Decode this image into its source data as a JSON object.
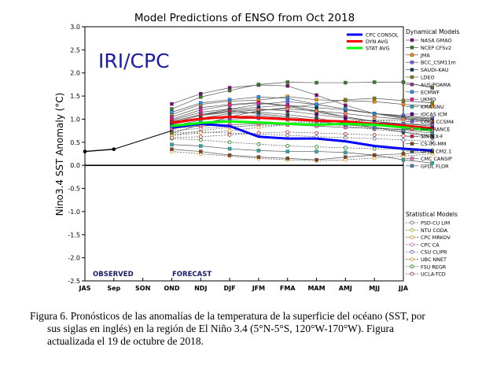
{
  "chart_data": {
    "type": "line",
    "title": "Model Predictions of ENSO from Oct 2018",
    "ylabel": "Nino3.4 SST Anomaly (°C)",
    "watermark": "IRI/CPC",
    "categories": [
      "JAS",
      "Sep",
      "SON",
      "OND",
      "NDJ",
      "DJF",
      "JFM",
      "FMA",
      "MAM",
      "AMJ",
      "MJJ",
      "JJA"
    ],
    "ylim": [
      -2.5,
      3.0
    ],
    "yticks": [
      "-2.5",
      "-2.0",
      "-1.5",
      "-1.0",
      "-0.5",
      "0.0",
      "0.5",
      "1.0",
      "1.5",
      "2.0",
      "2.5",
      "3.0"
    ],
    "zero_line": true,
    "annotations": {
      "observed": "OBSERVED",
      "forecast": "FORECAST"
    },
    "observed": {
      "x": [
        "JAS",
        "Sep"
      ],
      "values": [
        0.3,
        0.35
      ]
    },
    "averages": [
      {
        "name": "CPC CONSOL",
        "color": "#0000ff",
        "start": 3,
        "values": [
          0.82,
          0.9,
          0.85,
          0.62,
          0.58,
          0.58,
          0.52,
          0.42,
          0.36,
          0.32
        ]
      },
      {
        "name": "DYN AVG",
        "color": "#ff0000",
        "start": 3,
        "values": [
          0.92,
          1.01,
          1.05,
          1.03,
          1.0,
          0.97,
          0.95,
          0.9,
          0.86,
          0.8
        ]
      },
      {
        "name": "STAT AVG",
        "color": "#00ff00",
        "start": 3,
        "values": [
          0.85,
          0.92,
          0.95,
          0.93,
          0.9,
          0.88,
          0.9,
          0.88,
          0.82,
          0.76
        ]
      }
    ],
    "legend_dynamical_title": "Dynamical Models",
    "dynamical_models": [
      {
        "name": "NASA GMAO",
        "color": "#800080",
        "start": 3,
        "values": [
          1.33,
          1.55,
          1.68,
          1.74,
          1.72,
          1.52,
          1.3,
          1.12,
          1.06,
          1.0
        ]
      },
      {
        "name": "NCEP CFSv2",
        "color": "#3a7d22",
        "start": 3,
        "values": [
          1.22,
          1.48,
          1.62,
          1.75,
          1.8,
          1.79,
          1.79,
          1.8,
          1.8,
          1.68
        ]
      },
      {
        "name": "JMA",
        "color": "#ff8c00",
        "start": 3,
        "values": [
          1.1,
          1.32,
          1.39,
          1.41,
          1.49,
          1.42,
          1.4,
          1.38,
          1.32,
          1.28
        ]
      },
      {
        "name": "BCC_CSM11m",
        "color": "#7a5cff",
        "start": 3,
        "values": [
          0.98,
          1.15,
          1.22,
          1.32,
          1.38,
          1.32,
          1.22,
          1.12,
          1.08,
          1.02
        ]
      },
      {
        "name": "SAUDI-KAU",
        "color": "#004060",
        "start": 3,
        "values": [
          0.95,
          1.1,
          1.21,
          1.26,
          1.3,
          1.25,
          1.2,
          1.12,
          1.04,
          0.98
        ]
      },
      {
        "name": "LDEO",
        "color": "#808000",
        "start": 3,
        "values": [
          0.7,
          0.88,
          1.05,
          1.18,
          1.25,
          1.32,
          1.42,
          1.45,
          1.4,
          1.35
        ]
      },
      {
        "name": "AUS/POAMA",
        "color": "#9b2d9b",
        "start": 3,
        "values": [
          1.05,
          1.25,
          1.32,
          1.36,
          1.3,
          1.18,
          1.05,
          0.95,
          0.88,
          0.82
        ]
      },
      {
        "name": "ECMWF",
        "color": "#1e90ff",
        "start": 3,
        "values": [
          1.15,
          1.35,
          1.42,
          1.48,
          1.45,
          1.32,
          1.22,
          1.12,
          1.02,
          0.95
        ]
      },
      {
        "name": "UKMO",
        "color": "#ff1493",
        "start": 3,
        "values": [
          1.0,
          1.2,
          1.3,
          1.35,
          1.28,
          1.15,
          1.05,
          0.95,
          0.9,
          0.85
        ]
      },
      {
        "name": "KMA SNU",
        "color": "#20b2aa",
        "start": 3,
        "values": [
          0.45,
          0.42,
          0.36,
          0.32,
          0.3,
          0.3,
          0.28,
          0.22,
          0.12,
          0.05
        ]
      },
      {
        "name": "IOCAS ICM",
        "color": "#4b0082",
        "start": 3,
        "values": [
          0.92,
          1.08,
          1.18,
          1.22,
          1.18,
          1.1,
          1.02,
          0.95,
          0.88,
          0.82
        ]
      },
      {
        "name": "COLA CCSM4",
        "color": "#6a5acd",
        "start": 3,
        "values": [
          0.78,
          0.92,
          1.0,
          1.02,
          1.0,
          0.98,
          0.95,
          0.92,
          0.9,
          0.88
        ]
      },
      {
        "name": "MetFRANCE",
        "color": "#ff7f50",
        "start": 3,
        "values": [
          0.92,
          1.08,
          1.15,
          1.2,
          1.22,
          1.18,
          1.12,
          1.05,
          1.0,
          0.95
        ]
      },
      {
        "name": "SINTEX-F",
        "color": "#dc143c",
        "start": 3,
        "values": [
          0.95,
          1.1,
          1.18,
          1.12,
          1.05,
          0.98,
          0.92,
          0.88,
          0.82,
          0.78
        ]
      },
      {
        "name": "CS-IRI-MM",
        "color": "#8b4513",
        "start": 3,
        "values": [
          0.35,
          0.3,
          0.22,
          0.18,
          0.15,
          0.12,
          0.18,
          0.22,
          0.25,
          0.3
        ]
      },
      {
        "name": "GFDL CM2.1",
        "color": "#2f4f4f",
        "start": 3,
        "values": [
          0.88,
          1.02,
          1.12,
          1.15,
          1.1,
          1.02,
          0.92,
          0.82,
          0.72,
          0.62
        ]
      },
      {
        "name": "CMC CANSIP",
        "color": "#ff69b4",
        "start": 3,
        "values": [
          0.8,
          0.85,
          0.88,
          0.9,
          0.88,
          0.85,
          0.82,
          0.8,
          0.78,
          0.75
        ]
      },
      {
        "name": "GFDL FLOR",
        "color": "#4682b4",
        "start": 3,
        "values": [
          0.85,
          0.98,
          1.05,
          1.08,
          1.02,
          0.95,
          0.88,
          0.82,
          0.76,
          0.7
        ]
      }
    ],
    "legend_statistical_title": "Statistical Models",
    "statistical_models": [
      {
        "name": "PSD-CU LIM",
        "color": "#666666",
        "start": 3,
        "values": [
          0.95,
          1.02,
          1.04,
          1.02,
          0.98,
          0.92,
          0.85,
          0.78,
          0.72,
          0.66
        ]
      },
      {
        "name": "NTU CODA",
        "color": "#aaaa00",
        "start": 3,
        "values": [
          0.65,
          0.75,
          0.82,
          0.88,
          0.92,
          0.95,
          0.96,
          0.97,
          0.96,
          0.95
        ]
      },
      {
        "name": "CPC MRKOV",
        "color": "#ff8c00",
        "start": 3,
        "values": [
          0.3,
          0.25,
          0.2,
          0.15,
          0.12,
          0.1,
          0.12,
          0.16,
          0.2,
          0.25
        ]
      },
      {
        "name": "CPC CA",
        "color": "#cc66cc",
        "start": 3,
        "values": [
          0.75,
          0.8,
          0.84,
          0.86,
          0.88,
          0.9,
          0.88,
          0.86,
          0.85,
          0.82
        ]
      },
      {
        "name": "CSU CLIPR",
        "color": "#5555aa",
        "start": 3,
        "values": [
          0.7,
          0.72,
          0.7,
          0.68,
          0.65,
          0.62,
          0.6,
          0.58,
          0.55,
          0.52
        ]
      },
      {
        "name": "UBC NNET",
        "color": "#ff8c00",
        "start": 3,
        "values": [
          0.65,
          0.7,
          0.75,
          0.82,
          0.88,
          0.92,
          0.95,
          0.98,
          1.0,
          1.02
        ]
      },
      {
        "name": "FSU REGR",
        "color": "#008000",
        "start": 3,
        "values": [
          0.58,
          0.55,
          0.5,
          0.46,
          0.42,
          0.4,
          0.38,
          0.36,
          0.35,
          0.33
        ]
      },
      {
        "name": "UCLA-TCD",
        "color": "#b22222",
        "start": 3,
        "values": [
          0.6,
          0.62,
          0.66,
          0.7,
          0.72,
          0.7,
          0.68,
          0.66,
          0.64,
          0.6
        ]
      }
    ]
  },
  "caption": {
    "line1": "Figura 6. Pronósticos de las anomalías de la temperatura de la superficie  del océano (SST, por",
    "line2": "sus siglas en inglés)  en la región de El Niño 3.4 (5°N-5°S, 120°W-170°W).  Figura",
    "line3": "actualizada  el 19 de octubre de 2018."
  }
}
